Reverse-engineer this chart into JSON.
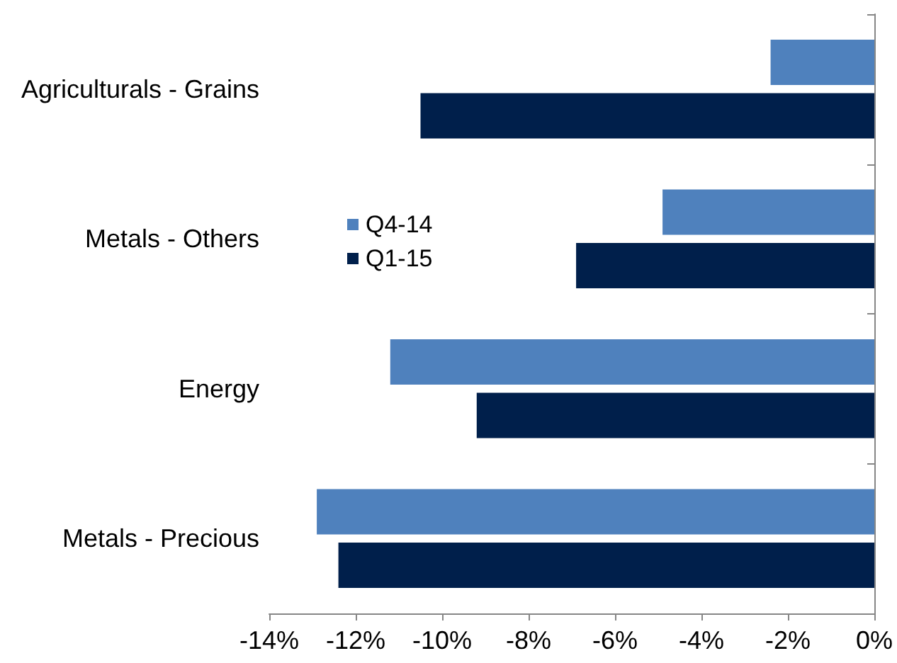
{
  "chart_data": {
    "type": "bar",
    "orientation": "horizontal",
    "categories": [
      "Agriculturals - Grains",
      "Metals - Others",
      "Energy",
      "Metals - Precious"
    ],
    "series": [
      {
        "name": "Q4-14",
        "color": "#4f81bd",
        "values": [
          -2.4,
          -4.9,
          -11.2,
          -12.9
        ]
      },
      {
        "name": "Q1-15",
        "color": "#001f4b",
        "values": [
          -10.5,
          -6.9,
          -9.2,
          -12.4
        ]
      }
    ],
    "xlim": [
      -14,
      0
    ],
    "xticks": [
      {
        "value": -14,
        "label": "-14%"
      },
      {
        "value": -12,
        "label": "-12%"
      },
      {
        "value": -10,
        "label": "-10%"
      },
      {
        "value": -8,
        "label": "-8%"
      },
      {
        "value": -6,
        "label": "-6%"
      },
      {
        "value": -4,
        "label": "-4%"
      },
      {
        "value": -2,
        "label": "-2%"
      },
      {
        "value": 0,
        "label": "0%"
      }
    ],
    "grid": false,
    "legend": "left"
  }
}
